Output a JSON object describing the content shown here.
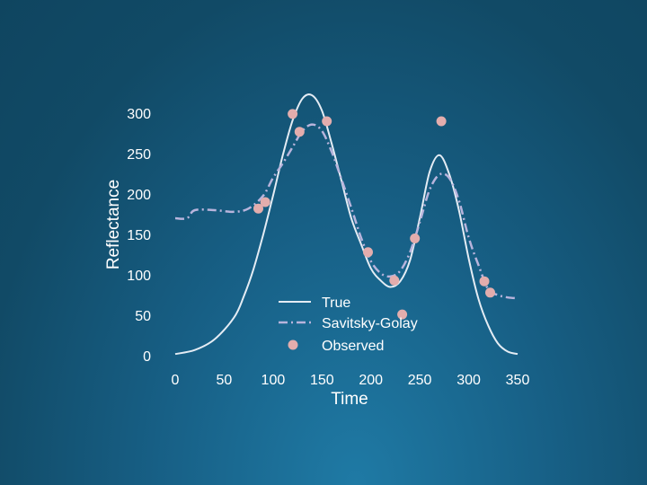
{
  "colors": {
    "background_top": "#114a66",
    "background_bottom": "#1f7aa5",
    "true_line": "#e4ecf4",
    "sg_line": "#b8b4dc",
    "observed": "#e3adad",
    "text": "#ffffff"
  },
  "chart_data": {
    "type": "line",
    "title": "",
    "xlabel": "Time",
    "ylabel": "Reflectance",
    "xlim": [
      0,
      360
    ],
    "ylim": [
      0,
      320
    ],
    "xticks": [
      0,
      50,
      100,
      150,
      200,
      250,
      300,
      350
    ],
    "yticks": [
      0,
      50,
      100,
      150,
      200,
      250,
      300
    ],
    "grid": false,
    "legend_position": "lower-center",
    "series": [
      {
        "name": "True",
        "style": "solid",
        "x": [
          0,
          20,
          40,
          60,
          70,
          80,
          90,
          100,
          110,
          120,
          130,
          140,
          150,
          160,
          170,
          180,
          190,
          200,
          210,
          220,
          230,
          240,
          250,
          260,
          270,
          280,
          290,
          300,
          310,
          320,
          330,
          340,
          350
        ],
        "y": [
          2,
          7,
          20,
          47,
          73,
          107,
          150,
          198,
          248,
          291,
          318,
          322,
          303,
          262,
          216,
          170,
          138,
          108,
          93,
          85,
          92,
          118,
          170,
          227,
          248,
          225,
          180,
          120,
          70,
          37,
          15,
          5,
          2
        ]
      },
      {
        "name": "Savitsky-Golay",
        "style": "dashdot",
        "x": [
          0,
          12,
          20,
          40,
          60,
          75,
          90,
          100,
          110,
          120,
          130,
          140,
          150,
          160,
          170,
          180,
          190,
          200,
          210,
          220,
          230,
          240,
          250,
          260,
          270,
          280,
          290,
          300,
          310,
          320,
          330,
          340,
          350
        ],
        "y": [
          170,
          170,
          180,
          180,
          178,
          182,
          198,
          220,
          238,
          258,
          278,
          286,
          278,
          252,
          218,
          183,
          146,
          117,
          102,
          98,
          105,
          128,
          165,
          205,
          224,
          220,
          192,
          146,
          112,
          82,
          75,
          72,
          71
        ]
      },
      {
        "name": "Observed",
        "style": "points",
        "x": [
          85,
          92,
          120,
          127,
          155,
          197,
          224,
          232,
          245,
          272,
          316,
          322
        ],
        "y": [
          182,
          190,
          299,
          277,
          290,
          128,
          93,
          51,
          145,
          290,
          92,
          78
        ]
      }
    ]
  }
}
